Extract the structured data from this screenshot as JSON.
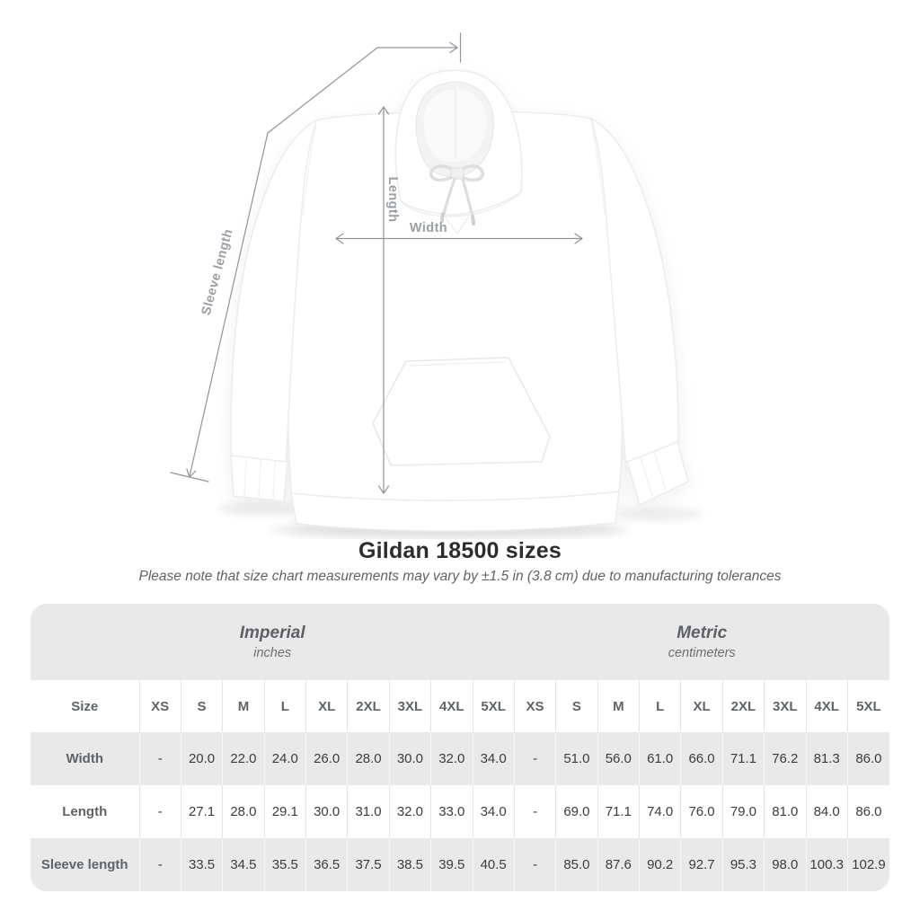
{
  "title": "Gildan 18500 sizes",
  "subtitle": "Please note that size chart measurements may vary by ±1.5 in (3.8 cm) due to manufacturing tolerances",
  "diagram": {
    "labels": {
      "sleeve_length": "Sleeve length",
      "length": "Length",
      "width": "Width"
    }
  },
  "chart_data": {
    "type": "table",
    "title": "Gildan 18500 sizes",
    "corner_label": "Size",
    "unit_groups": [
      {
        "name": "Imperial",
        "unit": "inches"
      },
      {
        "name": "Metric",
        "unit": "centimeters"
      }
    ],
    "sizes": [
      "XS",
      "S",
      "M",
      "L",
      "XL",
      "2XL",
      "3XL",
      "4XL",
      "5XL"
    ],
    "rows": [
      {
        "label": "Width",
        "imperial": [
          "-",
          "20.0",
          "22.0",
          "24.0",
          "26.0",
          "28.0",
          "30.0",
          "32.0",
          "34.0"
        ],
        "metric": [
          "-",
          "51.0",
          "56.0",
          "61.0",
          "66.0",
          "71.1",
          "76.2",
          "81.3",
          "86.0"
        ]
      },
      {
        "label": "Length",
        "imperial": [
          "-",
          "27.1",
          "28.0",
          "29.1",
          "30.0",
          "31.0",
          "32.0",
          "33.0",
          "34.0"
        ],
        "metric": [
          "-",
          "69.0",
          "71.1",
          "74.0",
          "76.0",
          "79.0",
          "81.0",
          "84.0",
          "86.0"
        ]
      },
      {
        "label": "Sleeve length",
        "imperial": [
          "-",
          "33.5",
          "34.5",
          "35.5",
          "36.5",
          "37.5",
          "38.5",
          "39.5",
          "40.5"
        ],
        "metric": [
          "-",
          "85.0",
          "87.6",
          "90.2",
          "92.7",
          "95.3",
          "98.0",
          "100.3",
          "102.9"
        ]
      }
    ],
    "colors": {
      "band_gray": "#e9e9ea",
      "value_text": "#3a3d40",
      "label_text": "#5f6468",
      "annotation_gray": "#9ba0a6"
    }
  }
}
